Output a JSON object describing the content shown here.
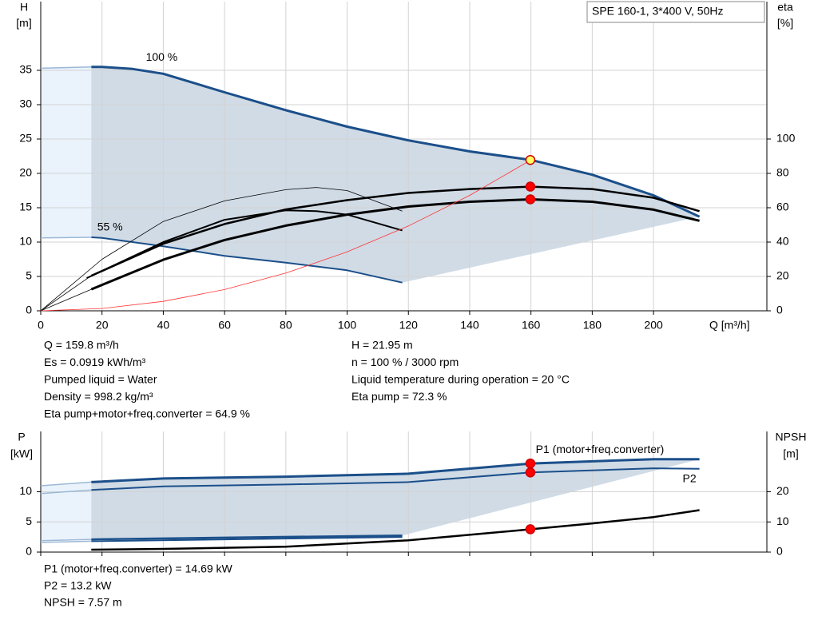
{
  "chart_data": [
    {
      "type": "line",
      "product": "SPE 160-1, 3*400 V, 50Hz",
      "x_label": "Q [m³/h]",
      "y_label": "H",
      "y_unit": "[m]",
      "y2_label": "eta",
      "y2_unit": "[%]",
      "xlim": [
        0,
        237
      ],
      "xticks": [
        0,
        20,
        40,
        60,
        80,
        100,
        120,
        140,
        160,
        180,
        200
      ],
      "ylim": [
        0,
        45
      ],
      "yticks": [
        0,
        5,
        10,
        15,
        20,
        25,
        30,
        35
      ],
      "y2lim": [
        0,
        180
      ],
      "y2ticks": [
        0,
        20,
        40,
        60,
        80,
        100
      ],
      "grid": true,
      "series": [
        {
          "name": "100 %",
          "color": "#1b4f8a",
          "width": 3,
          "x": [
            16.5,
            20,
            30,
            40,
            60,
            80,
            100,
            120,
            140,
            160,
            180,
            200,
            215
          ],
          "values": [
            35.5,
            35.5,
            35.2,
            34.5,
            31.8,
            29.2,
            26.8,
            24.8,
            23.2,
            21.95,
            19.8,
            16.8,
            13.7
          ]
        },
        {
          "name": "55 %",
          "color": "#1b4f8a",
          "width": 2,
          "x": [
            16.5,
            20,
            40,
            60,
            80,
            100,
            118
          ],
          "values": [
            10.7,
            10.6,
            9.4,
            8.0,
            7.0,
            5.9,
            4.1
          ]
        },
        {
          "color": "#9cb8d6",
          "width": 1.5,
          "x": [
            0,
            16.5
          ],
          "values": [
            35.3,
            35.5
          ]
        },
        {
          "color": "#9cb8d6",
          "width": 1.5,
          "x": [
            0,
            16.5
          ],
          "values": [
            10.6,
            10.7
          ]
        },
        {
          "color": "#000000",
          "width": 2.5,
          "axis": "y2",
          "x": [
            16.5,
            40,
            60,
            80,
            100,
            120,
            140,
            160,
            180,
            200,
            215
          ],
          "values": [
            20.4,
            39,
            50.5,
            59,
            64.4,
            68.6,
            70.9,
            72.3,
            70.9,
            65.8,
            58
          ]
        },
        {
          "color": "#000000",
          "width": 3,
          "axis": "y2",
          "x": [
            16.5,
            40,
            60,
            80,
            100,
            120,
            140,
            160,
            180,
            200,
            215
          ],
          "values": [
            12.5,
            29.7,
            41.2,
            49.6,
            56,
            60.7,
            63.5,
            64.9,
            63.5,
            58.9,
            52.4
          ]
        },
        {
          "color": "#000000",
          "width": 2,
          "axis": "y2",
          "x": [
            15,
            40,
            60,
            80,
            90,
            100,
            118
          ],
          "values": [
            19,
            40,
            53,
            58.5,
            58,
            56,
            46.8
          ]
        },
        {
          "color": "#000000",
          "width": 0.8,
          "axis": "y2",
          "x": [
            0,
            20,
            40,
            60,
            80,
            90,
            100,
            118
          ],
          "values": [
            0,
            30,
            52,
            64,
            70.5,
            71.8,
            70,
            58
          ]
        },
        {
          "color": "#000000",
          "width": 0.8,
          "axis": "y2",
          "x": [
            0,
            16.5
          ],
          "values": [
            0,
            12.5
          ]
        },
        {
          "color": "#000000",
          "width": 0.8,
          "axis": "y2",
          "x": [
            0,
            16.5
          ],
          "values": [
            0,
            20.4
          ]
        },
        {
          "color": "#ff3333",
          "width": 0.8,
          "x": [
            0,
            20,
            40,
            60,
            80,
            100,
            120,
            140,
            160
          ],
          "values": [
            0,
            0.34,
            1.37,
            3.09,
            5.49,
            8.57,
            12.35,
            16.8,
            21.95
          ]
        }
      ],
      "markers": [
        {
          "x": 159.8,
          "y": 21.95,
          "color": "#ffff66"
        },
        {
          "x": 159.8,
          "y": 72.3,
          "axis": "y2",
          "color": "#ff0000"
        },
        {
          "x": 159.8,
          "y": 64.9,
          "axis": "y2",
          "color": "#ff0000"
        }
      ],
      "info": [
        "Q = 159.8 m³/h",
        "H = 21.95 m",
        "Es = 0.0919 kWh/m³",
        "n = 100 % / 3000 rpm",
        "Pumped liquid = Water",
        "Liquid temperature during operation = 20 °C",
        "Density = 998.2 kg/m³",
        "Eta pump = 72.3 %",
        "Eta pump+motor+freq.converter = 64.9 %"
      ]
    },
    {
      "type": "line",
      "y_label": "P",
      "y_unit": "[kW]",
      "y2_label": "NPSH",
      "y2_unit": "[m]",
      "xlim": [
        0,
        237
      ],
      "xticks": [
        0,
        20,
        40,
        60,
        80,
        100,
        120,
        140,
        160,
        180,
        200
      ],
      "ylim": [
        0,
        20
      ],
      "yticks": [
        0,
        5,
        10
      ],
      "y2lim": [
        0,
        40
      ],
      "y2ticks": [
        0,
        10,
        20
      ],
      "grid": true,
      "series": [
        {
          "name": "P1 (motor+freq.converter)",
          "color": "#1b4f8a",
          "width": 3,
          "x": [
            16.5,
            40,
            80,
            120,
            160,
            200,
            215
          ],
          "values": [
            11.6,
            12.2,
            12.5,
            13.0,
            14.69,
            15.4,
            15.4
          ]
        },
        {
          "name": "P2",
          "color": "#1b4f8a",
          "width": 2,
          "x": [
            16.5,
            40,
            80,
            120,
            160,
            200,
            215
          ],
          "values": [
            10.3,
            10.9,
            11.2,
            11.6,
            13.2,
            13.9,
            13.8
          ]
        },
        {
          "color": "#1b4f8a",
          "width": 2.5,
          "x": [
            16.5,
            60,
            118
          ],
          "values": [
            2.1,
            2.4,
            2.75
          ]
        },
        {
          "color": "#1b4f8a",
          "width": 2,
          "x": [
            16.5,
            60,
            118
          ],
          "values": [
            1.8,
            2.1,
            2.5
          ]
        },
        {
          "color": "#9cb8d6",
          "width": 1.5,
          "x": [
            0,
            16.5
          ],
          "values": [
            11.0,
            11.6
          ]
        },
        {
          "color": "#9cb8d6",
          "width": 1.5,
          "x": [
            0,
            16.5
          ],
          "values": [
            9.7,
            10.3
          ]
        },
        {
          "color": "#9cb8d6",
          "width": 1.5,
          "x": [
            0,
            16.5
          ],
          "values": [
            1.9,
            2.1
          ]
        },
        {
          "color": "#9cb8d6",
          "width": 1.5,
          "x": [
            0,
            16.5
          ],
          "values": [
            1.6,
            1.8
          ]
        },
        {
          "color": "#000000",
          "width": 2.5,
          "axis": "y2",
          "x": [
            16.5,
            40,
            80,
            120,
            160,
            180,
            200,
            215
          ],
          "values": [
            0.8,
            1.05,
            1.8,
            3.9,
            7.57,
            9.5,
            11.6,
            13.9
          ]
        }
      ],
      "markers": [
        {
          "x": 159.8,
          "y": 14.69,
          "color": "#ff0000"
        },
        {
          "x": 159.8,
          "y": 13.2,
          "color": "#ff0000"
        },
        {
          "x": 159.8,
          "y": 7.57,
          "axis": "y2",
          "color": "#ff0000"
        }
      ],
      "info": [
        "P1 (motor+freq.converter) = 14.69 kW",
        "P2 = 13.2 kW",
        "NPSH = 7.57 m"
      ]
    }
  ]
}
